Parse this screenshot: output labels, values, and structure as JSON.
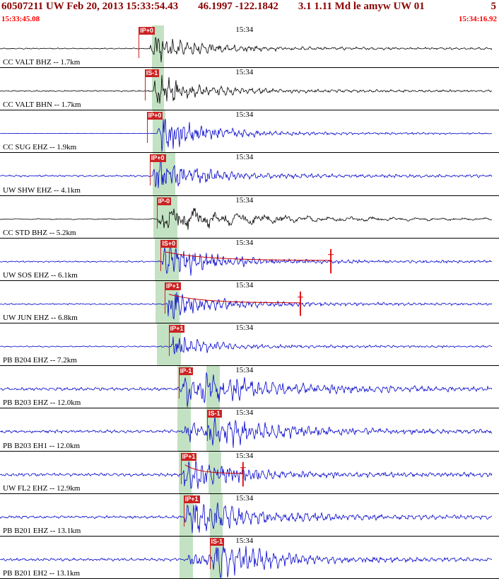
{
  "colors": {
    "header_text": "#8b0000",
    "window_time_text": "#ff0000",
    "pick_flag_bg": "#cc2222",
    "phase_band_green": "#c3e2c3",
    "trace_blue": "#0000cc",
    "trace_black": "#000000",
    "coda_red": "#cc0000"
  },
  "header": {
    "event_line": {
      "id_origin": "60507211 UW Feb 20, 2013 15:33:54.43",
      "coords": "46.1997 -122.1842",
      "magnitude": "3.1 1.11 Md le amyw UW 01",
      "page": "5"
    },
    "window_start": "15:33:45.08",
    "window_end": "15:34:16.92"
  },
  "traces": [
    {
      "station": "CC VALT BHZ -- 1.7km",
      "minute_label": "15:34",
      "color": "#000000",
      "pick": {
        "label": "IP+0",
        "x": 0.278
      },
      "bands": [
        [
          0.304,
          0.329
        ]
      ],
      "wave": {
        "seed": 101,
        "noise": 0.7,
        "onset": 0.3,
        "peak": 19,
        "decay": 55,
        "coda": 2.5,
        "freq": 0.58
      }
    },
    {
      "station": "CC VALT BHN -- 1.7km",
      "minute_label": "15:34",
      "color": "#000000",
      "pick": {
        "label": "IS-1",
        "x": 0.29
      },
      "bands": [
        [
          0.304,
          0.329
        ]
      ],
      "wave": {
        "seed": 202,
        "noise": 0.8,
        "onset": 0.306,
        "peak": 21,
        "decay": 50,
        "coda": 2.5,
        "freq": 0.6
      }
    },
    {
      "station": "CC SUG EHZ -- 1.9km",
      "minute_label": "15:34",
      "color": "#0000cc",
      "pick": {
        "label": "IP+0",
        "x": 0.294
      },
      "bands": [
        [
          0.306,
          0.331
        ]
      ],
      "wave": {
        "seed": 303,
        "noise": 0.25,
        "onset": 0.315,
        "peak": 26,
        "decay": 48,
        "coda": 3.5,
        "freq": 0.72
      }
    },
    {
      "station": "UW SHW EHZ -- 4.1km",
      "minute_label": "15:34",
      "color": "#0000cc",
      "pick": {
        "label": "IP+0",
        "x": 0.3
      },
      "bands": [
        [
          0.306,
          0.331
        ],
        [
          0.331,
          0.352
        ]
      ],
      "wave": {
        "seed": 404,
        "noise": 1.1,
        "onset": 0.306,
        "peak": 24,
        "decay": 50,
        "coda": 3.0,
        "freq": 0.62
      }
    },
    {
      "station": "CC STD BHZ -- 5.2km",
      "minute_label": "15:34",
      "color": "#000000",
      "pick": {
        "label": "IP-0",
        "x": 0.314
      },
      "bands": [
        [
          0.308,
          0.334
        ],
        [
          0.334,
          0.356
        ]
      ],
      "wave": {
        "seed": 505,
        "noise": 0.6,
        "onset": 0.316,
        "peak": 15,
        "decay": 90,
        "coda": 4.0,
        "freq": 0.2
      }
    },
    {
      "station": "UW SOS EHZ -- 6.1km",
      "minute_label": "15:34",
      "color": "#0000cc",
      "pick": {
        "label": "IS+0",
        "x": 0.322
      },
      "bands": [
        [
          0.31,
          0.336
        ],
        [
          0.336,
          0.358
        ]
      ],
      "coda_mark": 0.663,
      "wave": {
        "seed": 606,
        "noise": 0.9,
        "onset": 0.325,
        "peak": 26,
        "decay": 55,
        "coda": 3.0,
        "freq": 0.75
      }
    },
    {
      "station": "UW JUN EHZ -- 6.8km",
      "minute_label": "15:34",
      "color": "#0000cc",
      "pick": {
        "label": "IP+1",
        "x": 0.33
      },
      "bands": [
        [
          0.312,
          0.338
        ],
        [
          0.338,
          0.36
        ]
      ],
      "coda_mark": 0.602,
      "wave": {
        "seed": 707,
        "noise": 0.9,
        "onset": 0.334,
        "peak": 25,
        "decay": 48,
        "coda": 2.6,
        "freq": 0.75
      }
    },
    {
      "station": "PB B204 EHZ -- 7.2km",
      "minute_label": "15:34",
      "color": "#0000cc",
      "pick": {
        "label": "IP+1",
        "x": 0.338
      },
      "bands": [
        [
          0.314,
          0.34
        ],
        [
          0.34,
          0.362
        ]
      ],
      "wave": {
        "seed": 808,
        "noise": 0.8,
        "onset": 0.342,
        "peak": 17,
        "decay": 38,
        "coda": 2.0,
        "freq": 0.7
      }
    },
    {
      "station": "PB B203 EHZ -- 12.0km",
      "minute_label": "15:34",
      "color": "#0000cc",
      "pick": {
        "label": "IP-1",
        "x": 0.358
      },
      "bands": [
        [
          0.356,
          0.382
        ],
        [
          0.414,
          0.44
        ]
      ],
      "wave": {
        "seed": 909,
        "noise": 2.0,
        "onset": 0.362,
        "peak": 24,
        "decay": 85,
        "coda": 3.5,
        "freq": 0.6
      }
    },
    {
      "station": "PB B203 EH1 -- 12.0km",
      "minute_label": "15:34",
      "color": "#0000cc",
      "pick": {
        "label": "IS-1",
        "x": 0.415
      },
      "bands": [
        [
          0.356,
          0.382
        ],
        [
          0.414,
          0.44
        ]
      ],
      "wave": {
        "seed": 1010,
        "noise": 1.9,
        "onset": 0.368,
        "peak": 12,
        "decay": 26,
        "onset2": 0.418,
        "peak2": 20,
        "decay2": 70,
        "coda": 3.0,
        "freq": 0.62
      }
    },
    {
      "station": "UW FL2 EHZ -- 12.9km",
      "minute_label": "15:34",
      "color": "#0000cc",
      "pick": {
        "label": "IP+1",
        "x": 0.362
      },
      "bands": [
        [
          0.358,
          0.384
        ],
        [
          0.418,
          0.444
        ]
      ],
      "coda_mark": 0.487,
      "wave": {
        "seed": 1111,
        "noise": 1.9,
        "onset": 0.365,
        "peak": 22,
        "decay": 55,
        "coda": 3.2,
        "freq": 0.66
      }
    },
    {
      "station": "PB B201 EHZ -- 13.1km",
      "minute_label": "15:34",
      "color": "#0000cc",
      "pick": {
        "label": "IP+1",
        "x": 0.368
      },
      "bands": [
        [
          0.36,
          0.386
        ],
        [
          0.42,
          0.446
        ]
      ],
      "wave": {
        "seed": 1212,
        "noise": 1.7,
        "onset": 0.37,
        "peak": 26,
        "decay": 65,
        "coda": 3.5,
        "freq": 0.6
      }
    },
    {
      "station": "PB B201 EH2 -- 13.1km",
      "minute_label": "15:34",
      "color": "#0000cc",
      "pick": {
        "label": "IS-1",
        "x": 0.42
      },
      "bands": [
        [
          0.36,
          0.386
        ],
        [
          0.42,
          0.446
        ]
      ],
      "wave": {
        "seed": 1313,
        "noise": 1.7,
        "onset": 0.374,
        "peak": 7,
        "decay": 24,
        "onset2": 0.426,
        "peak2": 24,
        "decay2": 65,
        "coda": 3.0,
        "freq": 0.62
      }
    }
  ]
}
